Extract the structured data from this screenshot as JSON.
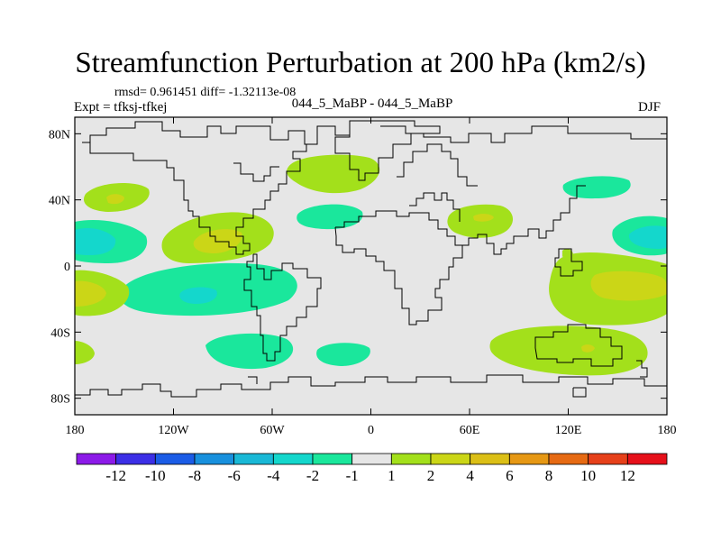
{
  "title": "Streamfunction Perturbation at 200 hPa (km2/s)",
  "stats": "rmsd= 0.961451 diff= -1.32113e-08",
  "expt": "Expt = tfksj-tfkej",
  "case": "044_5_MaBP - 044_5_MaBP",
  "season": "DJF",
  "map": {
    "x_ticks": [
      {
        "lon": -180,
        "label": "180"
      },
      {
        "lon": -120,
        "label": "120W"
      },
      {
        "lon": -60,
        "label": "60W"
      },
      {
        "lon": 0,
        "label": "0"
      },
      {
        "lon": 60,
        "label": "60E"
      },
      {
        "lon": 120,
        "label": "120E"
      },
      {
        "lon": 180,
        "label": "180"
      }
    ],
    "y_ticks": [
      {
        "lat": 80,
        "label": "80N"
      },
      {
        "lat": 40,
        "label": "40N"
      },
      {
        "lat": 0,
        "label": "0"
      },
      {
        "lat": -40,
        "label": "40S"
      },
      {
        "lat": -80,
        "label": "80S"
      }
    ],
    "background_color": "#e6e6e6",
    "anomalies": [
      {
        "lon": 150,
        "lat": 39,
        "value": -2
      },
      {
        "lon": -160,
        "lat": 40,
        "value": 2
      },
      {
        "lon": -160,
        "lat": 40,
        "value": 4
      },
      {
        "lon": -40,
        "lat": 60,
        "value": 2
      },
      {
        "lon": -40,
        "lat": 34,
        "value": -2
      },
      {
        "lon": 70,
        "lat": 31,
        "value": 2
      },
      {
        "lon": 70,
        "lat": 31,
        "value": 4
      },
      {
        "lon": -98,
        "lat": 18,
        "value": 2
      },
      {
        "lon": -98,
        "lat": 18,
        "value": 4
      },
      {
        "lon": -170,
        "lat": 14,
        "value": -2
      },
      {
        "lon": -170,
        "lat": 14,
        "value": -4
      },
      {
        "lon": 170,
        "lat": 15,
        "value": -2
      },
      {
        "lon": 170,
        "lat": 15,
        "value": -4
      },
      {
        "lon": -170,
        "lat": -14,
        "value": 2
      },
      {
        "lon": -170,
        "lat": -14,
        "value": 4
      },
      {
        "lon": -100,
        "lat": -12,
        "value": -2
      },
      {
        "lon": -100,
        "lat": -12,
        "value": -4
      },
      {
        "lon": 140,
        "lat": -14,
        "value": 2
      },
      {
        "lon": 140,
        "lat": -14,
        "value": 4
      },
      {
        "lon": -176,
        "lat": -55,
        "value": 2
      },
      {
        "lon": -75,
        "lat": -52,
        "value": -2
      },
      {
        "lon": -30,
        "lat": -55,
        "value": -2
      },
      {
        "lon": 125,
        "lat": -54,
        "value": 2
      },
      {
        "lon": 125,
        "lat": -54,
        "value": 4
      }
    ]
  },
  "colorbar": {
    "colors": [
      "#8c1ae8",
      "#3c2fe6",
      "#1b5ce6",
      "#1890dd",
      "#19b8d6",
      "#14d7cc",
      "#1ae79c",
      "#e6e6e6",
      "#a3e01b",
      "#cbd617",
      "#dbbf16",
      "#e69814",
      "#e66a13",
      "#e6401a",
      "#e6101a"
    ],
    "labels": [
      "-12",
      "-10",
      "-8",
      "-6",
      "-4",
      "-2",
      "-1",
      "1",
      "2",
      "4",
      "6",
      "8",
      "10",
      "12"
    ]
  }
}
